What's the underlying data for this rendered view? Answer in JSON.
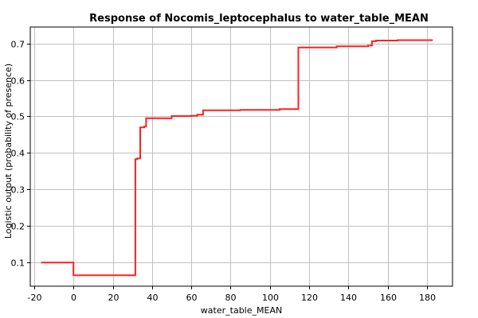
{
  "chart_data": {
    "type": "line",
    "title": "Response of Nocomis_leptocephalus to water_table_MEAN",
    "xlabel": "water_table_MEAN",
    "ylabel": "Logistic output (probability of presence)",
    "xlim": [
      -22,
      193
    ],
    "ylim": [
      0.035,
      0.745
    ],
    "xticks": [
      -20,
      0,
      20,
      40,
      60,
      80,
      100,
      120,
      140,
      160,
      180
    ],
    "xtick_labels": [
      "-20",
      "0",
      "20",
      "40",
      "60",
      "80",
      "100",
      "120",
      "140",
      "160",
      "180"
    ],
    "yticks": [
      0.1,
      0.2,
      0.3,
      0.4,
      0.5,
      0.6,
      0.7
    ],
    "ytick_labels": [
      "0.1",
      "0.2",
      "0.3",
      "0.4",
      "0.5",
      "0.6",
      "0.7"
    ],
    "grid": true,
    "series": [
      {
        "color": "#ff2020",
        "x": [
          -16.5,
          0,
          0,
          31.5,
          31.5,
          32.5,
          32.5,
          34,
          34,
          36,
          36,
          37,
          37,
          50,
          50,
          60,
          60,
          63,
          63,
          66,
          66,
          85,
          85,
          105,
          105,
          114.5,
          114.5,
          134,
          134,
          150,
          150,
          152,
          152,
          154,
          154,
          165,
          165,
          183
        ],
        "y": [
          0.1,
          0.1,
          0.065,
          0.065,
          0.383,
          0.383,
          0.385,
          0.385,
          0.47,
          0.47,
          0.472,
          0.472,
          0.495,
          0.495,
          0.501,
          0.501,
          0.502,
          0.502,
          0.505,
          0.505,
          0.517,
          0.517,
          0.518,
          0.518,
          0.52,
          0.52,
          0.689,
          0.689,
          0.692,
          0.692,
          0.694,
          0.694,
          0.706,
          0.706,
          0.708,
          0.708,
          0.709,
          0.709
        ]
      }
    ]
  }
}
